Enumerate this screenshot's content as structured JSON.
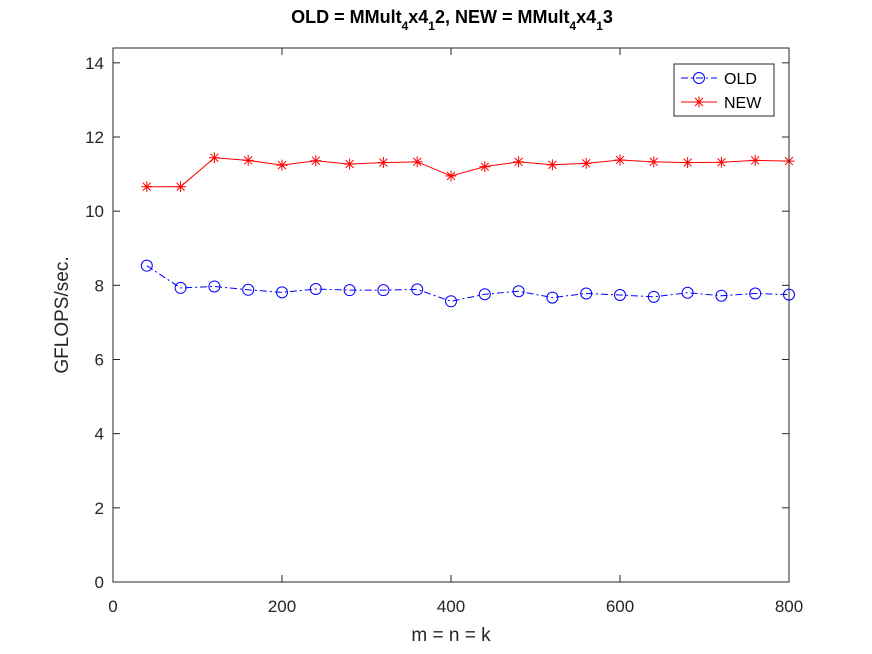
{
  "chart_data": {
    "type": "line",
    "title_parts": [
      {
        "text": "OLD = MMult",
        "sub": false
      },
      {
        "text": "4",
        "sub": true
      },
      {
        "text": "x4",
        "sub": false
      },
      {
        "text": "1",
        "sub": true
      },
      {
        "text": "2, NEW = MMult",
        "sub": false
      },
      {
        "text": "4",
        "sub": true
      },
      {
        "text": "x4",
        "sub": false
      },
      {
        "text": "1",
        "sub": true
      },
      {
        "text": "3",
        "sub": false
      }
    ],
    "xlabel": "m = n = k",
    "ylabel": "GFLOPS/sec.",
    "xlim": [
      0,
      800
    ],
    "ylim": [
      0,
      14.4
    ],
    "xticks": [
      0,
      200,
      400,
      600,
      800
    ],
    "yticks": [
      0,
      2,
      4,
      6,
      8,
      10,
      12,
      14
    ],
    "grid": false,
    "legend_position": "top-right",
    "x": [
      40,
      80,
      120,
      160,
      200,
      240,
      280,
      320,
      360,
      400,
      440,
      480,
      520,
      560,
      600,
      640,
      680,
      720,
      760,
      800
    ],
    "series": [
      {
        "name": "OLD",
        "color": "#0000ff",
        "marker": "circle",
        "line_style": "dash-dot",
        "values": [
          8.53,
          7.93,
          7.97,
          7.88,
          7.81,
          7.9,
          7.87,
          7.87,
          7.89,
          7.57,
          7.76,
          7.84,
          7.67,
          7.78,
          7.74,
          7.69,
          7.8,
          7.72,
          7.78,
          7.75
        ]
      },
      {
        "name": "NEW",
        "color": "#ff0000",
        "marker": "asterisk",
        "line_style": "solid",
        "values": [
          10.66,
          10.66,
          11.44,
          11.37,
          11.24,
          11.36,
          11.27,
          11.31,
          11.33,
          10.95,
          11.2,
          11.33,
          11.25,
          11.29,
          11.38,
          11.33,
          11.31,
          11.32,
          11.37,
          11.35
        ]
      }
    ]
  }
}
